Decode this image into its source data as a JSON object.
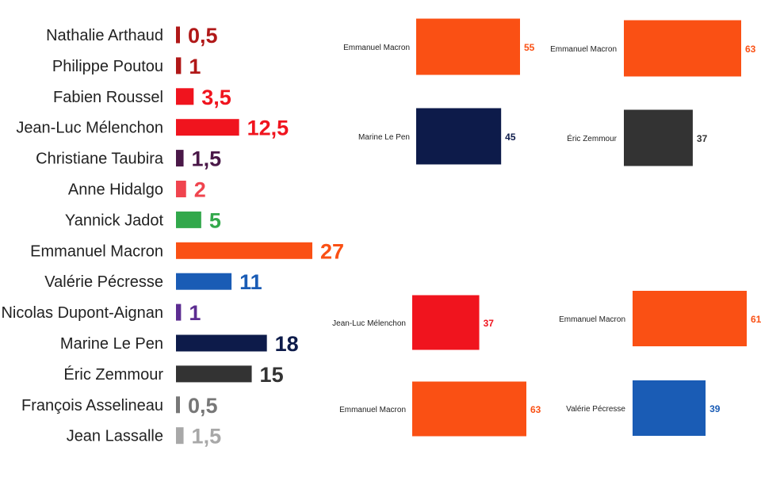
{
  "chart_data": [
    {
      "type": "bar",
      "orientation": "horizontal",
      "categories": [
        "Nathalie Arthaud",
        "Philippe Poutou",
        "Fabien Roussel",
        "Jean-Luc Mélenchon",
        "Christiane Taubira",
        "Anne Hidalgo",
        "Yannick Jadot",
        "Emmanuel Macron",
        "Valérie Pécresse",
        "Nicolas Dupont-Aignan",
        "Marine Le Pen",
        "Éric Zemmour",
        "François Asselineau",
        "Jean Lassalle"
      ],
      "values": [
        0.5,
        1,
        3.5,
        12.5,
        1.5,
        2,
        5,
        27,
        11,
        1,
        18,
        15,
        0.5,
        1.5
      ],
      "value_labels": [
        "0,5",
        "1",
        "3,5",
        "12,5",
        "1,5",
        "2",
        "5",
        "27",
        "11",
        "1",
        "18",
        "15",
        "0,5",
        "1,5"
      ],
      "colors": [
        "#b01818",
        "#b01818",
        "#f0141e",
        "#f0141e",
        "#4a1848",
        "#f0444e",
        "#32a84b",
        "#fa5014",
        "#1a5cb5",
        "#5c2d91",
        "#0d1b4a",
        "#333333",
        "#777777",
        "#a8a8a8"
      ],
      "title": "",
      "xlabel": "",
      "ylabel": ""
    },
    {
      "type": "bar",
      "orientation": "horizontal",
      "categories": [
        "Emmanuel Macron",
        "Marine Le Pen"
      ],
      "values": [
        55,
        45
      ],
      "value_labels": [
        "55",
        "45"
      ],
      "colors": [
        "#fa5014",
        "#0d1b4a"
      ]
    },
    {
      "type": "bar",
      "orientation": "horizontal",
      "categories": [
        "Emmanuel Macron",
        "Éric Zemmour"
      ],
      "values": [
        63,
        37
      ],
      "value_labels": [
        "63",
        "37"
      ],
      "colors": [
        "#fa5014",
        "#333333"
      ]
    },
    {
      "type": "bar",
      "orientation": "horizontal",
      "categories": [
        "Jean-Luc Mélenchon",
        "Emmanuel Macron"
      ],
      "values": [
        37,
        63
      ],
      "value_labels": [
        "37",
        "63"
      ],
      "colors": [
        "#f0141e",
        "#fa5014"
      ]
    },
    {
      "type": "bar",
      "orientation": "horizontal",
      "categories": [
        "Emmanuel Macron",
        "Valérie Pécresse"
      ],
      "values": [
        61,
        39
      ],
      "value_labels": [
        "61",
        "39"
      ],
      "colors": [
        "#fa5014",
        "#1a5cb5"
      ]
    }
  ]
}
